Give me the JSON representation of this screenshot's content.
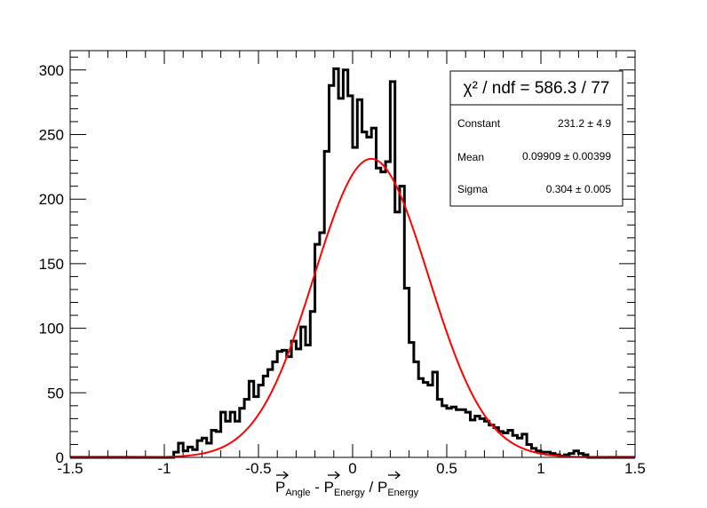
{
  "chart_data": {
    "type": "histogram",
    "xlim": [
      -1.5,
      1.5
    ],
    "ylim": [
      0,
      315
    ],
    "bin_width": 0.025,
    "bin_start": -0.95,
    "x_ticks": [
      -1.5,
      -1,
      -0.5,
      0,
      0.5,
      1,
      1.5
    ],
    "x_tick_labels": [
      "-1.5",
      "-1",
      "-0.5",
      "0",
      "0.5",
      "1",
      "1.5"
    ],
    "y_ticks": [
      0,
      50,
      100,
      150,
      200,
      250,
      300
    ],
    "y_tick_labels": [
      "0",
      "50",
      "100",
      "150",
      "200",
      "250",
      "300"
    ],
    "xlabel": {
      "p1": "P",
      "s1": "Angle",
      "mid": " - ",
      "p2": "P",
      "s2": "Energy",
      "sep": " / ",
      "p3": "P",
      "s3": "Energy"
    },
    "counts": [
      4,
      11,
      5,
      8,
      6,
      13,
      15,
      11,
      21,
      20,
      35,
      28,
      35,
      28,
      38,
      45,
      59,
      47,
      56,
      63,
      68,
      74,
      82,
      83,
      78,
      90,
      84,
      101,
      87,
      113,
      165,
      174,
      237,
      288,
      301,
      278,
      300,
      280,
      240,
      277,
      252,
      248,
      255,
      224,
      221,
      229,
      291,
      190,
      210,
      131,
      89,
      74,
      61,
      58,
      56,
      66,
      45,
      40,
      38,
      39,
      37,
      37,
      35,
      29,
      32,
      30,
      28,
      25,
      23,
      20,
      19,
      21,
      17,
      15,
      18,
      10,
      7,
      5,
      4,
      4,
      3,
      2,
      1,
      2,
      3,
      5,
      3,
      2
    ],
    "fit": {
      "function": "gaus",
      "constant": 231.2,
      "mean": 0.09909,
      "sigma": 0.304,
      "color": "#ff0000"
    },
    "histogram_color": "#000000"
  },
  "stats_box": {
    "title": "χ² / ndf = 586.3 / 77",
    "rows": [
      {
        "name": "Constant",
        "value": "231.2 ± 4.9"
      },
      {
        "name": "Mean",
        "value": "0.09909 ± 0.00399"
      },
      {
        "name": "Sigma",
        "value": "0.304 ± 0.005"
      }
    ]
  }
}
